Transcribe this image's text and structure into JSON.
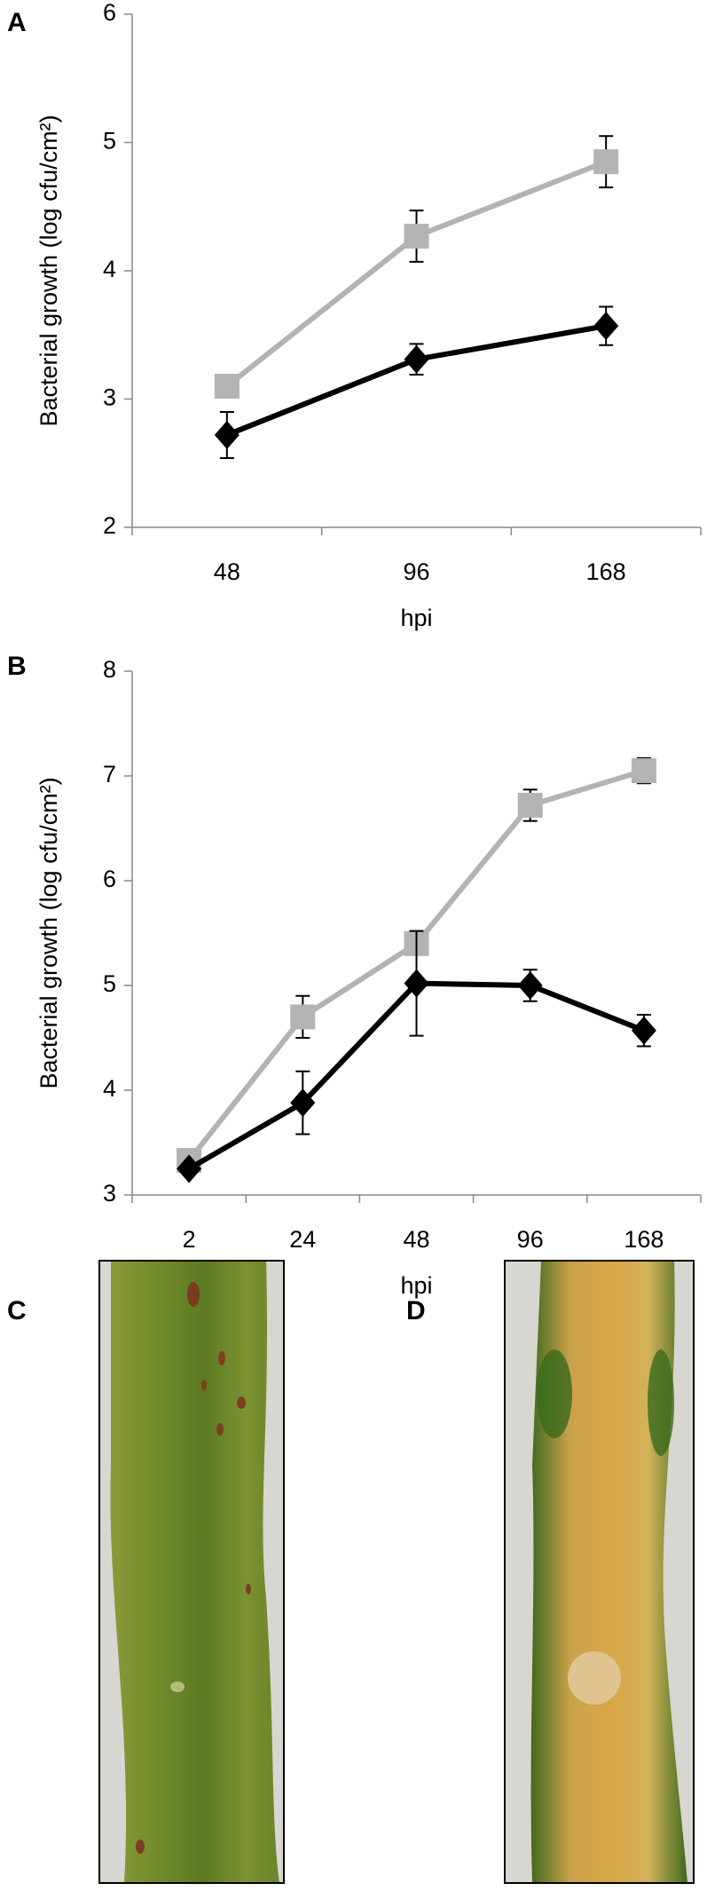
{
  "chart_data": [
    {
      "type": "line",
      "panel": "A",
      "ylabel": "Bacterial growth (log cfu/cm²)",
      "xlabel": "hpi",
      "categories": [
        "48",
        "96",
        "168"
      ],
      "series": [
        {
          "color": "#b3b3b3",
          "marker": "square",
          "values": [
            3.1,
            4.27,
            4.85
          ],
          "errors": [
            0.05,
            0.2,
            0.2
          ]
        },
        {
          "color": "#000000",
          "marker": "diamond",
          "values": [
            2.72,
            3.31,
            3.57
          ],
          "errors": [
            0.18,
            0.12,
            0.15
          ]
        }
      ],
      "ylim": [
        2,
        6
      ],
      "yticks": [
        2,
        3,
        4,
        5,
        6
      ]
    },
    {
      "type": "line",
      "panel": "B",
      "ylabel": "Bacterial growth (log cfu/cm²)",
      "xlabel": "hpi",
      "categories": [
        "2",
        "24",
        "48",
        "96",
        "168"
      ],
      "series": [
        {
          "color": "#b3b3b3",
          "marker": "square",
          "values": [
            3.33,
            4.7,
            5.4,
            6.72,
            7.05
          ],
          "errors": [
            0.05,
            0.2,
            0.05,
            0.15,
            0.12
          ]
        },
        {
          "color": "#000000",
          "marker": "diamond",
          "values": [
            3.25,
            3.88,
            5.02,
            5.0,
            4.57
          ],
          "errors": [
            0.05,
            0.3,
            0.5,
            0.15,
            0.15
          ]
        }
      ],
      "ylim": [
        3,
        8
      ],
      "yticks": [
        3,
        4,
        5,
        6,
        7,
        8
      ]
    }
  ],
  "photos": [
    {
      "label": "C"
    },
    {
      "label": "D"
    }
  ]
}
